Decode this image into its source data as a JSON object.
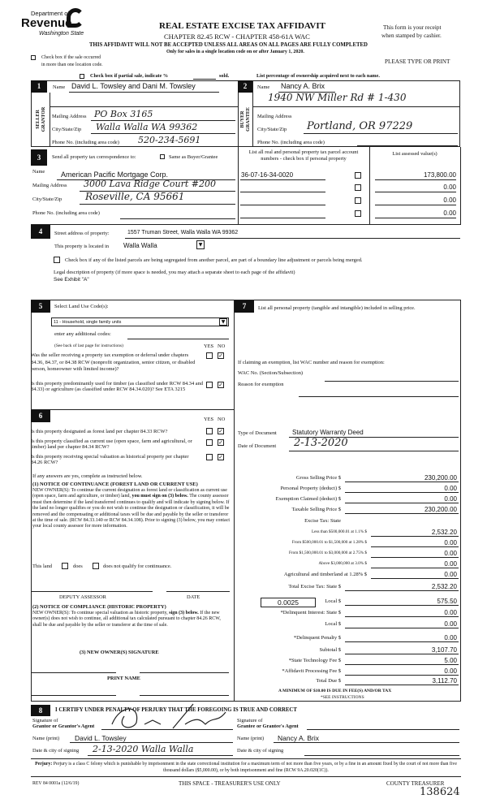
{
  "header": {
    "dept": "Department of",
    "agency": "Revenue",
    "state": "Washington State",
    "title": "REAL ESTATE EXCISE TAX AFFIDAVIT",
    "chapter": "CHAPTER 82.45 RCW - CHAPTER 458-61A WAC",
    "warning": "THIS AFFIDAVIT WILL NOT BE ACCEPTED UNLESS ALL AREAS ON ALL PAGES ARE FULLY COMPLETED",
    "only_for": "Only for sales in a single location code on or after January 1, 2020.",
    "receipt1": "This form is your receipt",
    "receipt2": "when stamped by cashier.",
    "type_print": "PLEASE TYPE OR PRINT",
    "multi_loc1": "Check box if the sale occurred",
    "multi_loc2": "in more than one location code.",
    "partial": "Check box if partial sale, indicate %",
    "sold": "sold.",
    "list_pct": "List percentage of ownership acquired next to each name."
  },
  "seller": {
    "num": "1",
    "side": "SELLER GRANTOR",
    "name_label": "Name",
    "name": "David L. Towsley and Dani M. Towsley",
    "addr_label": "Mailing Address",
    "addr": "PO Box 3165",
    "city_label": "City/State/Zip",
    "city": "Walla Walla WA 99362",
    "phone_label": "Phone No. (including area code)",
    "phone": "520-234-5691"
  },
  "buyer": {
    "num": "2",
    "side": "BUYER GRANTEE",
    "name_label": "Name",
    "name": "Nancy A. Brix",
    "addr_line": "1940 NW Miller Rd # 1-430",
    "addr_label": "Mailing Address",
    "city_label": "City/State/Zip",
    "city": "Portland, OR 97229",
    "phone_label": "Phone No. (including area code)"
  },
  "section3": {
    "num": "3",
    "send_label": "Send all property tax correspondence to:",
    "same_label": "Same as Buyer/Grantee",
    "name_label": "Name",
    "name": "American Pacific Mortgage Corp.",
    "addr_label": "Mailing Address",
    "addr": "3000 Lava Ridge Court #200",
    "city_label": "City/State/Zip",
    "city": "Roseville, CA 95661",
    "phone_label": "Phone No. (including area code)",
    "parcel_header": "List all real and personal property tax parcel account numbers - check box if personal property",
    "assessed_header": "List assessed value(s)",
    "parcels": [
      "36-07-16-34-0020",
      "",
      "",
      ""
    ],
    "assessed": [
      "173,800.00",
      "0.00",
      "0.00",
      "0.00"
    ]
  },
  "section4": {
    "num": "4",
    "street_label": "Street address of property:",
    "street": "1557 Truman Street, Walla Walla WA  99362",
    "located_label": "This property is located in",
    "located": "Walla Walla",
    "segregated": "Check box if any of the listed parcels are being segregated from another parcel, are part of a boundary line adjustment or parcels being merged.",
    "legal_label": "Legal description of property (if more space is needed, you may attach a separate sheet to each page of the affidavit)",
    "legal": "See Exhibit \"A\""
  },
  "section5": {
    "num": "5",
    "select_label": "Select Land Use Code(s):",
    "land_use": "11 - Household, single family units",
    "additional": "enter any additional codes:",
    "see_back": "(See back of last page for instructions)",
    "yes": "YES",
    "no": "NO",
    "q1": "Was the seller receiving a property tax exemption or deferral under chapters 84.36, 84.37, or 84.38 RCW (nonprofit organization, senior citizen, or disabled person, homeowner with limited income)?",
    "q2": "Is this property predominantly used for timber (as classified under RCW 84.34 and 84.33) or agriculture (as classified under RCW 84.34.020)? See ETA 3215"
  },
  "section6": {
    "num": "6",
    "yes": "YES",
    "no": "NO",
    "q1": "Is this property designated as forest land per chapter 84.33 RCW?",
    "q2": "Is this property classified as current use (open space, farm and agricultural, or timber) land per chapter 84.34 RCW?",
    "q3": "Is this property receiving special valuation as historical property per chapter 84.26 RCW?",
    "if_yes": "If any answers are yes, complete as instructed below.",
    "notice1_title": "(1) NOTICE OF CONTINUANCE (FOREST LAND OR CURRENT USE)",
    "notice1_a": "NEW OWNER(S): To continue the current designation as forest land or classification as current use (open space, farm and agriculture, or timber) land,",
    "notice1_b": "you must sign on (3) below.",
    "notice1_c": "The county assessor must then determine if the land transferred continues to qualify and will indicate by signing below. If the land no longer qualifies or you do not wish to continue the designation or classification, it will be removed and the compensating or additional taxes will be due and payable by the seller or transferor at the time of sale. (RCW 84.33.140 or RCW 84.34.108). Prior to signing (3) below, you may contact your local county assessor for more information.",
    "this_land": "This land",
    "does": "does",
    "does_not": "does not qualify for continuance.",
    "deputy": "DEPUTY ASSESSOR",
    "date": "DATE",
    "notice2_title": "(2) NOTICE OF COMPLIANCE (HISTORIC PROPERTY)",
    "notice2_a": "NEW OWNER(S): To continue special valuation as historic property,",
    "notice2_b": "sign (3) below.",
    "notice2_c": "If the new owner(s) does not wish to continue, all additional tax calculated pursuant to chapter 84.26 RCW, shall be due and payable by the seller or transferor at the time of sale.",
    "sig3": "(3) NEW OWNER(S) SIGNATURE",
    "print_name": "PRINT NAME"
  },
  "section7": {
    "num": "7",
    "list_label": "List all personal property (tangible and intangible) included in selling price.",
    "exempt_label": "If claiming an exemption, list WAC number and reason for exemption:",
    "wac_label": "WAC No. (Section/Subsection)",
    "reason_label": "Reason for exemption",
    "doc_type_label": "Type of Document",
    "doc_type": "Statutory Warranty Deed",
    "doc_date_label": "Date of Document",
    "doc_date": "2-13-2020",
    "tax_rows": [
      {
        "label": "Gross Selling Price  $",
        "value": "230,200.00"
      },
      {
        "label": "Personal Property (deduct)  $",
        "value": "0.00"
      },
      {
        "label": "Exemption Claimed (deduct)  $",
        "value": "0.00"
      },
      {
        "label": "Taxable Selling Price  $",
        "value": "230,200.00"
      },
      {
        "label": "Excise Tax: State",
        "value": ""
      },
      {
        "label": "Less than $500,000.01 at 1.1%  $",
        "value": "2,532.20"
      },
      {
        "label": "From $500,000.01 to $1,500,000 at 1.28%  $",
        "value": "0.00"
      },
      {
        "label": "From $1,500,000.01 to $3,000,000 at 2.75%  $",
        "value": "0.00"
      },
      {
        "label": "Above $3,000,000 at 3.0%  $",
        "value": "0.00"
      },
      {
        "label": "Agricultural and timberland at 1.28%  $",
        "value": "0.00"
      },
      {
        "label": "Total Excise Tax: State  $",
        "value": "2,532.20"
      },
      {
        "label": "Local  $",
        "value": "575.50"
      },
      {
        "label": "*Delinquent Interest: State  $",
        "value": "0.00"
      },
      {
        "label": "Local  $",
        "value": "0.00"
      },
      {
        "label": "*Delinquent Penalty  $",
        "value": "0.00"
      },
      {
        "label": "Subtotal  $",
        "value": "3,107.70"
      },
      {
        "label": "*State Technology Fee  $",
        "value": "5.00"
      },
      {
        "label": "*Affidavit Processing Fee  $",
        "value": "0.00"
      },
      {
        "label": "Total Due  $",
        "value": "3,112.70"
      }
    ],
    "local_rate": "0.0025",
    "minimum": "A MINIMUM OF $10.00 IS DUE IN FEE(S) AND/OR TAX",
    "see_instr": "*SEE INSTRUCTIONS"
  },
  "section8": {
    "num": "8",
    "certify": "I CERTIFY UNDER PENALTY OF PERJURY THAT THE FOREGOING IS TRUE AND CORRECT",
    "sig_of": "Signature of",
    "grantor_agent": "Grantor or Grantor's Agent",
    "grantee_agent": "Grantee or Grantee's Agent",
    "name_print": "Name (print)",
    "grantor_name": "David L. Towsley",
    "grantee_name": "Nancy A. Brix",
    "date_city": "Date & city of signing",
    "grantor_date": "2-13-2020  Walla Walla"
  },
  "footer": {
    "perjury_label": "Perjury:",
    "perjury": "Perjury is a class C felony which is punishable by imprisonment in the state correctional institution for a maximum term of not more than five years, or by a fine in an amount fixed by the court of not more than five thousand dollars ($5,000.00), or by both imprisonment and fine (RCW 9A.20.020(1C)).",
    "rev": "REV 84 0001a (12/6/19)",
    "treasurer_use": "THIS SPACE - TREASURER'S USE ONLY",
    "county_treasurer": "COUNTY TREASURER",
    "receipt_no": "138624"
  },
  "checks": {
    "checked": "✓"
  }
}
